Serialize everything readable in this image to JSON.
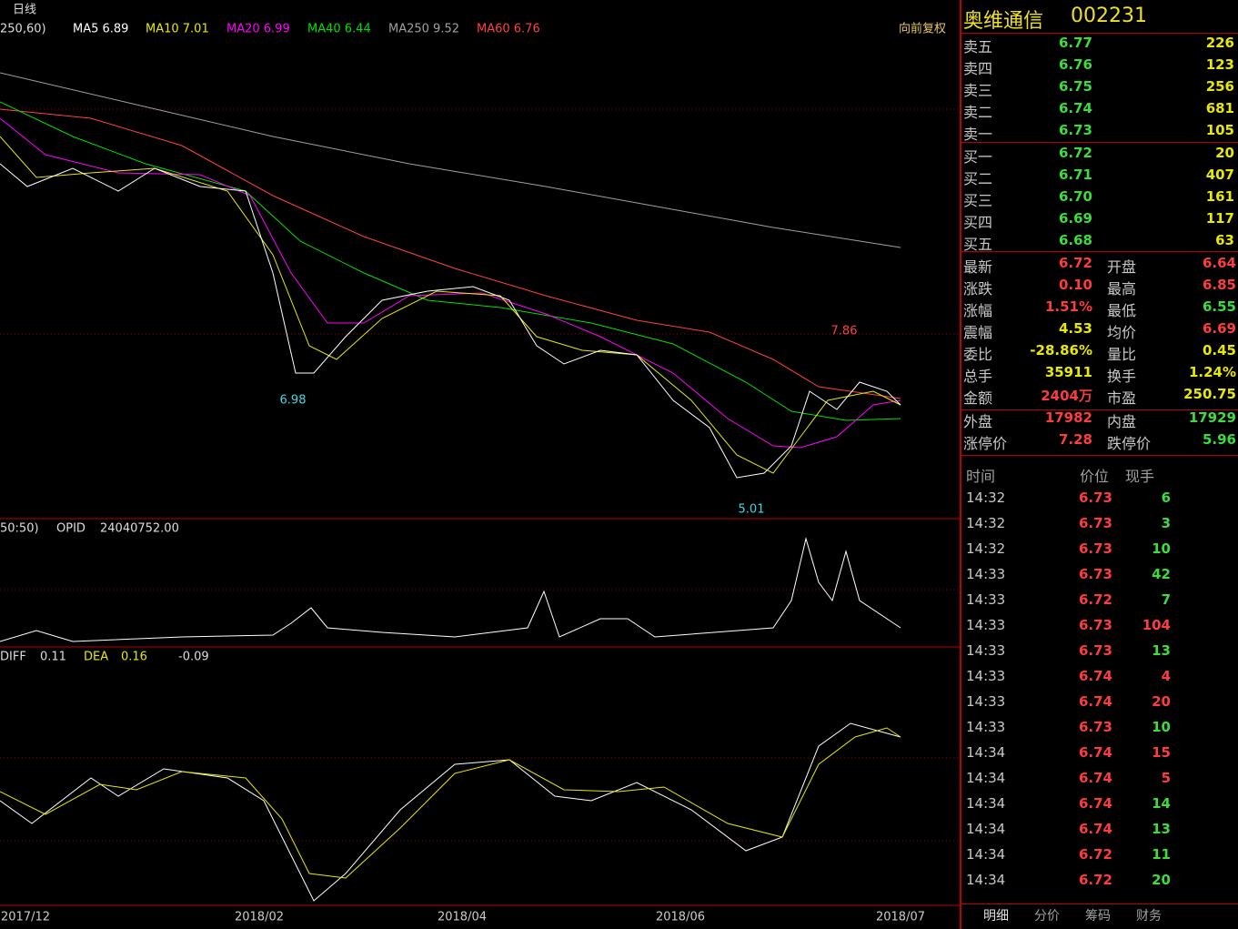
{
  "toolbar": {
    "period": "日线"
  },
  "ma_legend": {
    "params": "250,60)",
    "items": [
      {
        "label": "MA5 6.89",
        "color": "#ffffff"
      },
      {
        "label": "MA10 7.01",
        "color": "#e8e800"
      },
      {
        "label": "MA20 6.99",
        "color": "#ff00ff"
      },
      {
        "label": "MA40 6.44",
        "color": "#00e000"
      },
      {
        "label": "MA250 9.52",
        "color": "#a0a0a0"
      },
      {
        "label": "MA60 6.76",
        "color": "#ff4040"
      }
    ]
  },
  "adjust": "向前复权",
  "price_marks": {
    "low1": "6.98",
    "low2": "5.01",
    "high": "7.86"
  },
  "volume_legend": {
    "params": "50:50)",
    "name": "OPID",
    "value": "24040752.00"
  },
  "macd_legend": {
    "diff_label": "DIFF",
    "diff": "0.11",
    "dea_label": "DEA",
    "dea": "0.16",
    "macd": "-0.09"
  },
  "x_axis": [
    "2017/12",
    "2018/02",
    "2018/04",
    "2018/06",
    "2018/07"
  ],
  "quote": {
    "name": "奥维通信",
    "code": "002231"
  },
  "order_book": [
    {
      "label": "卖五",
      "price": "6.77",
      "volume": "226"
    },
    {
      "label": "卖四",
      "price": "6.76",
      "volume": "123"
    },
    {
      "label": "卖三",
      "price": "6.75",
      "volume": "256"
    },
    {
      "label": "卖二",
      "price": "6.74",
      "volume": "681"
    },
    {
      "label": "卖一",
      "price": "6.73",
      "volume": "105"
    },
    {
      "label": "买一",
      "price": "6.72",
      "volume": "20"
    },
    {
      "label": "买二",
      "price": "6.71",
      "volume": "407"
    },
    {
      "label": "买三",
      "price": "6.70",
      "volume": "161"
    },
    {
      "label": "买四",
      "price": "6.69",
      "volume": "117"
    },
    {
      "label": "买五",
      "price": "6.68",
      "volume": "63"
    }
  ],
  "stats": [
    [
      {
        "label": "最新",
        "value": "6.72",
        "color": "#ff3c3c"
      },
      {
        "label": "开盘",
        "value": "6.64",
        "color": "#ff3c3c"
      }
    ],
    [
      {
        "label": "涨跌",
        "value": "0.10",
        "color": "#ff3c3c"
      },
      {
        "label": "最高",
        "value": "6.85",
        "color": "#ff3c3c"
      }
    ],
    [
      {
        "label": "涨幅",
        "value": "1.51%",
        "color": "#ff3c3c"
      },
      {
        "label": "最低",
        "value": "6.55",
        "color": "#3cdc3c"
      }
    ],
    [
      {
        "label": "震幅",
        "value": "4.53",
        "color": "#e8e800"
      },
      {
        "label": "均价",
        "value": "6.69",
        "color": "#ff3c3c"
      }
    ],
    [
      {
        "label": "委比",
        "value": "-28.86%",
        "color": "#e8e800"
      },
      {
        "label": "量比",
        "value": "0.45",
        "color": "#e8e800"
      }
    ],
    [
      {
        "label": "总手",
        "value": "35911",
        "color": "#e8e800"
      },
      {
        "label": "换手",
        "value": "1.24%",
        "color": "#e8e800"
      }
    ],
    [
      {
        "label": "金额",
        "value": "2404万",
        "color": "#ff3c3c"
      },
      {
        "label": "市盈",
        "value": "250.75",
        "color": "#e8e800"
      }
    ],
    [
      {
        "label": "外盘",
        "value": "17982",
        "color": "#ff3c3c"
      },
      {
        "label": "内盘",
        "value": "17929",
        "color": "#3cdc3c"
      }
    ],
    [
      {
        "label": "涨停价",
        "value": "7.28",
        "color": "#ff3c3c"
      },
      {
        "label": "跌停价",
        "value": "5.96",
        "color": "#3cdc3c"
      }
    ]
  ],
  "ticks_header": [
    "时间",
    "价位",
    "现手"
  ],
  "ticks": [
    {
      "time": "14:32",
      "price": "6.73",
      "volume": "6",
      "color": "#3cdc3c"
    },
    {
      "time": "14:32",
      "price": "6.73",
      "volume": "3",
      "color": "#3cdc3c"
    },
    {
      "time": "14:32",
      "price": "6.73",
      "volume": "10",
      "color": "#3cdc3c"
    },
    {
      "time": "14:33",
      "price": "6.73",
      "volume": "42",
      "color": "#3cdc3c"
    },
    {
      "time": "14:33",
      "price": "6.72",
      "volume": "7",
      "color": "#3cdc3c"
    },
    {
      "time": "14:33",
      "price": "6.73",
      "volume": "104",
      "color": "#ff3c3c"
    },
    {
      "time": "14:33",
      "price": "6.73",
      "volume": "13",
      "color": "#3cdc3c"
    },
    {
      "time": "14:33",
      "price": "6.74",
      "volume": "4",
      "color": "#ff3c3c"
    },
    {
      "time": "14:33",
      "price": "6.74",
      "volume": "20",
      "color": "#ff3c3c"
    },
    {
      "time": "14:33",
      "price": "6.73",
      "volume": "10",
      "color": "#3cdc3c"
    },
    {
      "time": "14:34",
      "price": "6.74",
      "volume": "15",
      "color": "#ff3c3c"
    },
    {
      "time": "14:34",
      "price": "6.74",
      "volume": "5",
      "color": "#ff3c3c"
    },
    {
      "time": "14:34",
      "price": "6.74",
      "volume": "14",
      "color": "#3cdc3c"
    },
    {
      "time": "14:34",
      "price": "6.74",
      "volume": "13",
      "color": "#3cdc3c"
    },
    {
      "time": "14:34",
      "price": "6.72",
      "volume": "11",
      "color": "#3cdc3c"
    },
    {
      "time": "14:34",
      "price": "6.72",
      "volume": "20",
      "color": "#3cdc3c"
    }
  ],
  "tabs": [
    "明细",
    "分价",
    "筹码",
    "财务"
  ]
}
